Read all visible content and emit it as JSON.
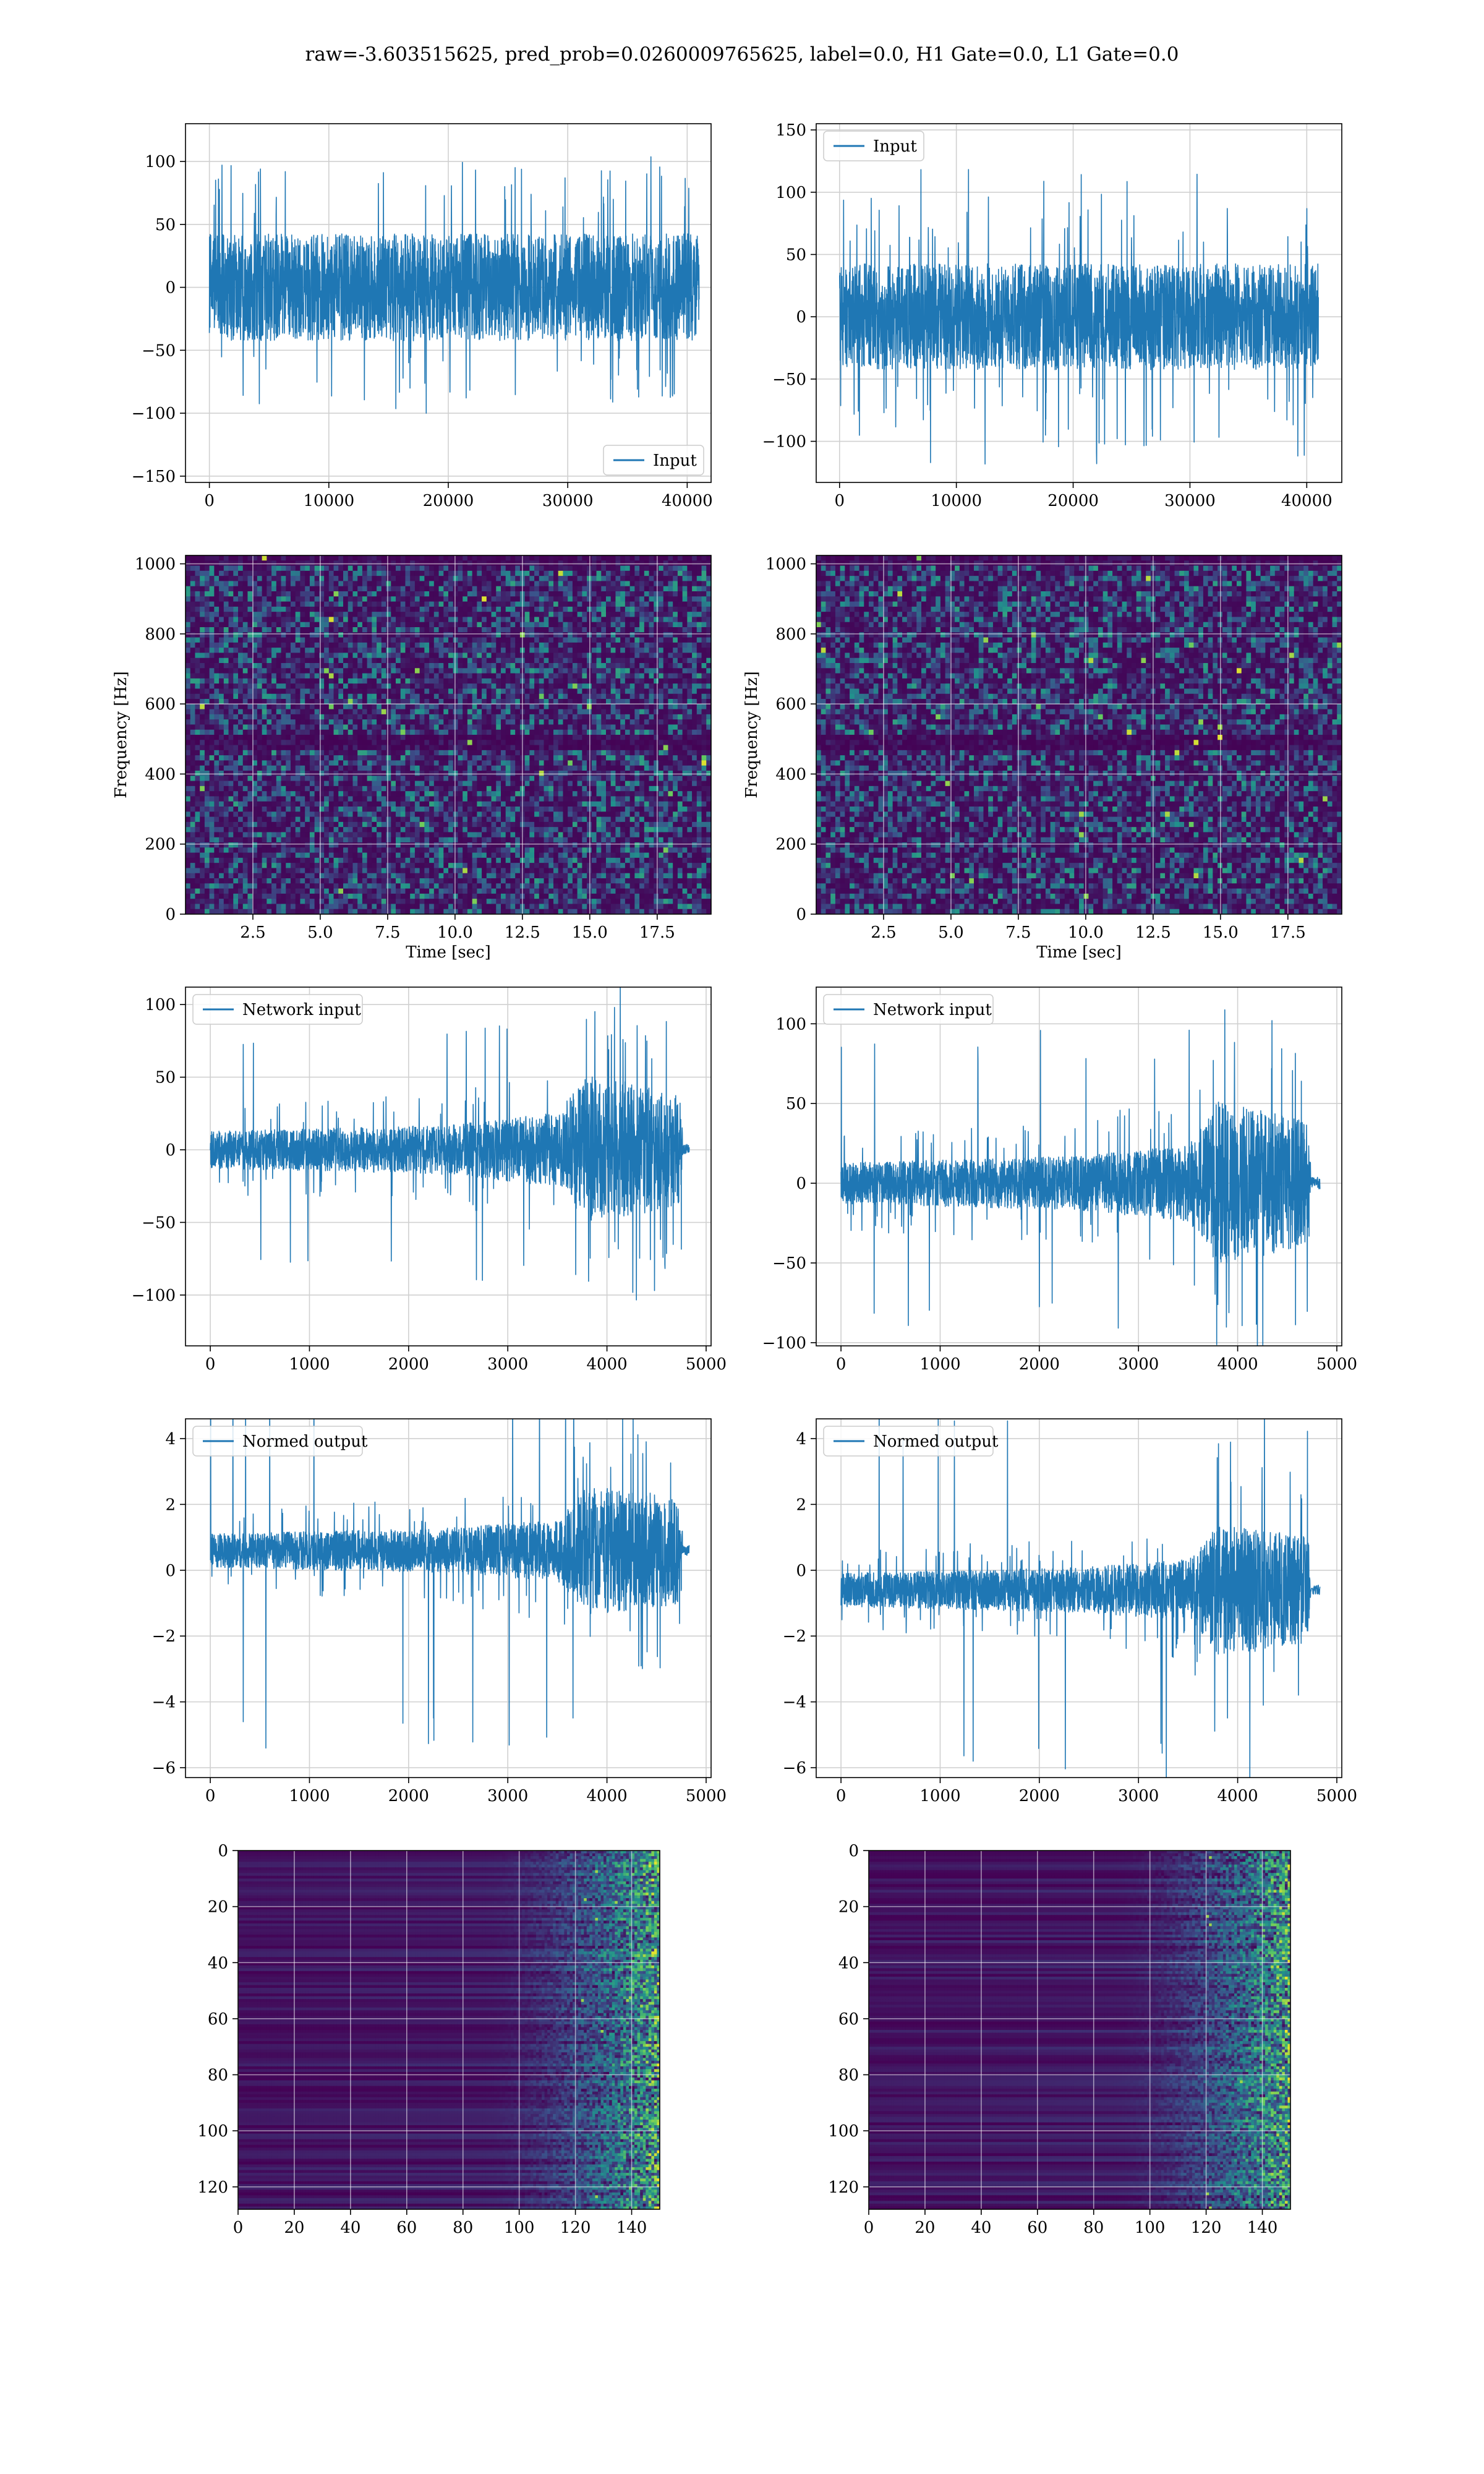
{
  "title": "raw=-3.603515625, pred_prob=0.0260009765625, label=0.0, H1 Gate=0.0, L1 Gate=0.0",
  "colors": {
    "line": "#1f77b4",
    "grid": "#d0d0d0",
    "heat_bg": "#440154"
  },
  "chart_data": [
    {
      "id": "p0",
      "type": "line",
      "series": [
        {
          "name": "Input"
        }
      ],
      "legend_loc": "lower-right",
      "xticks": [
        0,
        10000,
        20000,
        30000,
        40000
      ],
      "yticks": [
        -150,
        -100,
        -50,
        0,
        50,
        100
      ],
      "xlim": [
        -2000,
        42000
      ],
      "ylim": [
        -155,
        130
      ],
      "x_range": [
        0,
        41000
      ],
      "envelope": [
        [
          -50,
          50
        ]
      ],
      "spikes": 100
    },
    {
      "id": "p1",
      "type": "line",
      "series": [
        {
          "name": "Input"
        }
      ],
      "legend_loc": "upper-left",
      "xticks": [
        0,
        10000,
        20000,
        30000,
        40000
      ],
      "yticks": [
        -100,
        -50,
        0,
        50,
        100,
        150
      ],
      "xlim": [
        -2000,
        43000
      ],
      "ylim": [
        -133,
        155
      ],
      "x_range": [
        0,
        41000
      ],
      "envelope": [
        [
          -50,
          50
        ]
      ],
      "spikes": 115
    },
    {
      "id": "p2",
      "type": "heatmap",
      "xlabel": "Time [sec]",
      "ylabel": "Frequency [Hz]",
      "xticks": [
        2.5,
        5.0,
        7.5,
        10.0,
        12.5,
        15.0,
        17.5
      ],
      "yticks": [
        0,
        200,
        400,
        600,
        800,
        1000
      ],
      "xlim": [
        0,
        19.5
      ],
      "ylim": [
        0,
        1024
      ]
    },
    {
      "id": "p3",
      "type": "heatmap",
      "xlabel": "Time [sec]",
      "ylabel": "Frequency [Hz]",
      "xticks": [
        2.5,
        5.0,
        7.5,
        10.0,
        12.5,
        15.0,
        17.5
      ],
      "yticks": [
        0,
        200,
        400,
        600,
        800,
        1000
      ],
      "xlim": [
        0,
        19.5
      ],
      "ylim": [
        0,
        1024
      ]
    },
    {
      "id": "p4",
      "type": "line",
      "series": [
        {
          "name": "Network input"
        }
      ],
      "legend_loc": "upper-left",
      "xticks": [
        0,
        1000,
        2000,
        3000,
        4000,
        5000
      ],
      "yticks": [
        -100,
        -50,
        0,
        50,
        100
      ],
      "xlim": [
        -250,
        5050
      ],
      "ylim": [
        -135,
        112
      ],
      "x_range": [
        0,
        4830
      ],
      "envelope": [
        [
          0,
          15
        ],
        [
          2400,
          20
        ],
        [
          3500,
          30
        ],
        [
          3800,
          60
        ],
        [
          4200,
          55
        ],
        [
          4750,
          45
        ]
      ],
      "tail": [
        4750,
        4830,
        4
      ],
      "offset": 0,
      "spikes": 88
    },
    {
      "id": "p5",
      "type": "line",
      "series": [
        {
          "name": "Network input"
        }
      ],
      "legend_loc": "upper-left",
      "xticks": [
        0,
        1000,
        2000,
        3000,
        4000,
        5000
      ],
      "yticks": [
        -100,
        -50,
        0,
        50,
        100
      ],
      "xlim": [
        -250,
        5050
      ],
      "ylim": [
        -102,
        123
      ],
      "x_range": [
        0,
        4830
      ],
      "envelope": [
        [
          0,
          15
        ],
        [
          2400,
          20
        ],
        [
          3500,
          28
        ],
        [
          3800,
          60
        ],
        [
          4200,
          55
        ],
        [
          4720,
          45
        ]
      ],
      "tail": [
        4720,
        4830,
        4
      ],
      "offset": 0,
      "spikes": 92
    },
    {
      "id": "p6",
      "type": "line",
      "series": [
        {
          "name": "Normed output"
        }
      ],
      "legend_loc": "upper-left",
      "xticks": [
        0,
        1000,
        2000,
        3000,
        4000,
        5000
      ],
      "yticks": [
        -6,
        -4,
        -2,
        0,
        2,
        4
      ],
      "xlim": [
        -250,
        5050
      ],
      "ylim": [
        -6.3,
        4.6
      ],
      "x_range": [
        0,
        4830
      ],
      "envelope": [
        [
          0,
          0.6
        ],
        [
          2400,
          0.8
        ],
        [
          3500,
          1.1
        ],
        [
          3800,
          2.3
        ],
        [
          4200,
          2.2
        ],
        [
          4750,
          1.9
        ]
      ],
      "tail": [
        4750,
        4830,
        0.15
      ],
      "offset": 0.6,
      "spikes": 5.8
    },
    {
      "id": "p7",
      "type": "line",
      "series": [
        {
          "name": "Normed output"
        }
      ],
      "legend_loc": "upper-left",
      "xticks": [
        0,
        1000,
        2000,
        3000,
        4000,
        5000
      ],
      "yticks": [
        -6,
        -4,
        -2,
        0,
        2,
        4
      ],
      "xlim": [
        -250,
        5050
      ],
      "ylim": [
        -6.3,
        4.6
      ],
      "x_range": [
        0,
        4830
      ],
      "envelope": [
        [
          0,
          0.6
        ],
        [
          2400,
          0.8
        ],
        [
          3500,
          1.1
        ],
        [
          3800,
          2.3
        ],
        [
          4200,
          2.2
        ],
        [
          4720,
          1.9
        ]
      ],
      "tail": [
        4720,
        4830,
        0.15
      ],
      "offset": -0.6,
      "spikes": 5.7
    },
    {
      "id": "p8",
      "type": "heatmap",
      "xticks": [
        0,
        20,
        40,
        60,
        80,
        100,
        120,
        140
      ],
      "yticks": [
        0,
        20,
        40,
        60,
        80,
        100,
        120
      ],
      "xlim": [
        0,
        150
      ],
      "ylim": [
        128,
        0
      ],
      "y_inverted": true
    },
    {
      "id": "p9",
      "type": "heatmap",
      "xticks": [
        0,
        20,
        40,
        60,
        80,
        100,
        120,
        140
      ],
      "yticks": [
        0,
        20,
        40,
        60,
        80,
        100,
        120
      ],
      "xlim": [
        0,
        150
      ],
      "ylim": [
        128,
        0
      ],
      "y_inverted": true
    }
  ]
}
